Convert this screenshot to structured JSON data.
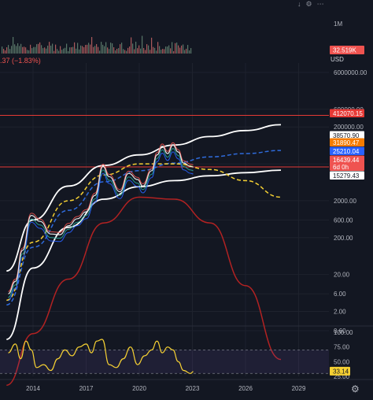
{
  "header": {
    "change_text": ".37 (−1.83%)",
    "currency": "USD"
  },
  "toolbar": {
    "icons": [
      "download-icon",
      "gear-icon",
      "dots-icon"
    ]
  },
  "colors": {
    "background": "#131722",
    "grid": "#1e222d",
    "channel": "#ffffff",
    "yellow_curve": "#f5d033",
    "blue_curve": "#2f6bdb",
    "red_arc": "#b22222",
    "red_line": "#e53935",
    "rsi": "#f5d033",
    "volume": "#d16a6a"
  },
  "chart_data": [
    {
      "type": "line",
      "scale": "log",
      "y_tick_labels": [
        "6000000.00",
        "600000.00",
        "200000.00",
        "20000.00",
        "2000.00",
        "600.00",
        "200.00",
        "20.00",
        "6.00",
        "2.00",
        "0.60"
      ],
      "y_tick_values": [
        6000000,
        600000,
        200000,
        20000,
        2000,
        600,
        200,
        20,
        6,
        2,
        0.6
      ],
      "x_tick_labels": [
        "2014",
        "2017",
        "2020",
        "2023",
        "2026",
        "2029"
      ],
      "x_tick_values": [
        2014,
        2017,
        2020,
        2023,
        2026,
        2029
      ],
      "price_tags": [
        {
          "label": "412070.15",
          "value": 412070.15,
          "bg": "#e53935",
          "fg": "#ffffff"
        },
        {
          "label": "38570.90",
          "value": 38570.9,
          "bg": "#ffffff",
          "fg": "#131722"
        },
        {
          "label": "31890.47",
          "value": 31890.47,
          "bg": "#f57c00",
          "fg": "#ffffff"
        },
        {
          "label": "25210.04",
          "value": 25210.04,
          "bg": "#2962ff",
          "fg": "#ffffff"
        },
        {
          "label": "16439.44",
          "value": 16439.44,
          "bg": "#ef5350",
          "fg": "#ffffff"
        },
        {
          "label": "6d 0h",
          "value": 12000,
          "bg": "#ef5350",
          "fg": "#ffffff"
        },
        {
          "label": "15279.43",
          "value": 10000,
          "bg": "#ffffff",
          "fg": "#131722"
        }
      ],
      "series": [
        {
          "color": "#ffffff",
          "x": [
            2012.5,
            2014,
            2016,
            2018,
            2020,
            2022,
            2024,
            2026,
            2028
          ],
          "y": [
            25,
            600,
            5000,
            18000,
            35000,
            65000,
            110000,
            160000,
            230000
          ]
        },
        {
          "color": "#ffffff",
          "x": [
            2012.5,
            2014,
            2016,
            2018,
            2020,
            2022,
            2024,
            2026,
            2028
          ],
          "y": [
            0.35,
            30,
            380,
            2200,
            4800,
            7000,
            9500,
            11500,
            13500
          ]
        },
        {
          "color": "#2f6bdb",
          "x": [
            2012.5,
            2014,
            2016,
            2018,
            2020,
            2022,
            2024,
            2026,
            2028
          ],
          "y": [
            3,
            110,
            1100,
            6500,
            13000,
            21000,
            31000,
            38000,
            46000
          ]
        },
        {
          "color": "#f5d033",
          "x": [
            2012.5,
            2014,
            2016,
            2018,
            2020,
            2022,
            2024,
            2026,
            2028
          ],
          "y": [
            4,
            150,
            2000,
            10000,
            20000,
            20000,
            14000,
            7000,
            2500
          ]
        },
        {
          "color": "#b22222",
          "x": [
            2012.5,
            2014,
            2016,
            2018,
            2020,
            2022,
            2024,
            2026,
            2028
          ],
          "y": [
            0.02,
            0.5,
            15,
            500,
            2500,
            2200,
            500,
            10,
            0.1
          ]
        }
      ],
      "price": {
        "x": [
          2012.6,
          2013,
          2013.4,
          2013.9,
          2014.4,
          2015,
          2015.5,
          2016,
          2016.5,
          2017,
          2017.5,
          2017.95,
          2018.3,
          2018.9,
          2019.4,
          2019.9,
          2020.2,
          2020.7,
          2021.0,
          2021.3,
          2021.6,
          2021.9,
          2022.2,
          2022.5,
          2022.9,
          2023.05
        ],
        "y": [
          6,
          13,
          90,
          800,
          550,
          250,
          240,
          420,
          650,
          1000,
          2800,
          17000,
          9000,
          3500,
          11000,
          7500,
          5000,
          13000,
          35000,
          60000,
          38000,
          65000,
          42000,
          21000,
          17000,
          16400
        ]
      },
      "horizontal_lines": [
        {
          "value": 412070.15,
          "color": "#e53935"
        },
        {
          "value": 16439.44,
          "color": "#e53935"
        }
      ]
    },
    {
      "type": "line",
      "y_tick_labels": [
        "100.00",
        "75.00",
        "50.00",
        "25.00"
      ],
      "y_tick_values": [
        100,
        75,
        50,
        25
      ],
      "last_value_label": "33.14",
      "band": [
        30,
        70
      ],
      "x": [
        2012.6,
        2013,
        2013.3,
        2013.6,
        2013.9,
        2014.2,
        2014.6,
        2015,
        2015.4,
        2015.8,
        2016.2,
        2016.6,
        2017,
        2017.3,
        2017.6,
        2017.9,
        2018.3,
        2018.7,
        2019.1,
        2019.5,
        2019.9,
        2020.3,
        2020.7,
        2021.0,
        2021.3,
        2021.6,
        2021.9,
        2022.2,
        2022.5,
        2022.9,
        2023.05
      ],
      "y": [
        65,
        80,
        55,
        85,
        70,
        40,
        45,
        35,
        55,
        70,
        60,
        75,
        80,
        65,
        85,
        88,
        45,
        40,
        55,
        75,
        45,
        60,
        70,
        85,
        65,
        75,
        70,
        50,
        35,
        30,
        33.14
      ]
    },
    {
      "type": "bar",
      "label": "1M",
      "last_value_label": "32.519K"
    }
  ]
}
